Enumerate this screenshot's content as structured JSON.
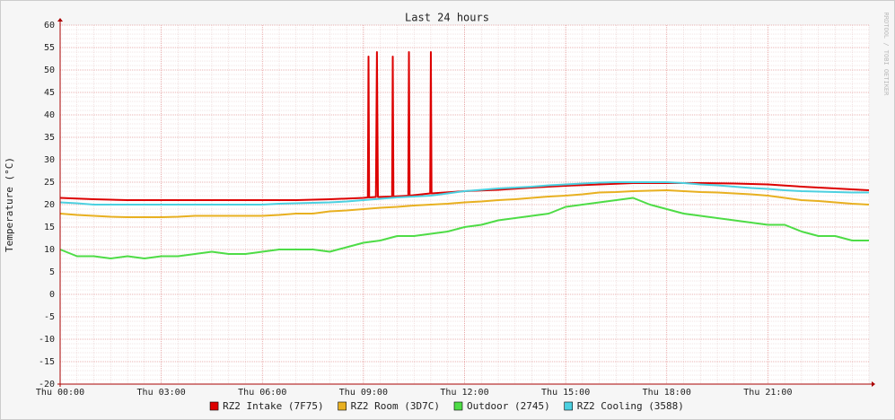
{
  "chart_data": {
    "type": "line",
    "title": "Last 24 hours",
    "y_label": "Temperature (°C)",
    "watermark": "RRDTOOL / TOBI OETIKER",
    "x": [
      0,
      0.5,
      1,
      1.5,
      2,
      2.5,
      3,
      3.5,
      4,
      4.5,
      5,
      5.5,
      6,
      6.5,
      7,
      7.5,
      8,
      8.5,
      9,
      9.5,
      10,
      10.5,
      11,
      11.5,
      12,
      12.5,
      13,
      13.5,
      14,
      14.5,
      15,
      15.5,
      16,
      16.5,
      17,
      17.5,
      18,
      18.5,
      19,
      19.5,
      20,
      20.5,
      21,
      21.5,
      22,
      22.5,
      23,
      23.5,
      24
    ],
    "series": [
      {
        "name": "RZ2 Intake (7F75)",
        "color": "#dd0000",
        "x": [
          0,
          1,
          2,
          3,
          4,
          5,
          6,
          7,
          8,
          9,
          9.13,
          9.15,
          9.17,
          9.37,
          9.4,
          9.43,
          9.85,
          9.87,
          9.89,
          10.33,
          10.35,
          10.37,
          10.98,
          11,
          11.02,
          12,
          13,
          14,
          15,
          16,
          17,
          18,
          19,
          20,
          21,
          22,
          23,
          24
        ],
        "values": [
          21.5,
          21.2,
          21,
          21,
          21,
          21,
          21,
          21,
          21.2,
          21.5,
          21.6,
          53,
          21.6,
          21.7,
          54,
          21.7,
          21.8,
          53,
          21.8,
          22,
          54,
          22,
          22.5,
          54,
          22.5,
          23,
          23.3,
          23.8,
          24.2,
          24.5,
          24.8,
          24.8,
          24.8,
          24.7,
          24.5,
          24,
          23.6,
          23.2
        ]
      },
      {
        "name": "RZ2 Room (3D7C)",
        "color": "#e8b020",
        "values": [
          18,
          17.7,
          17.5,
          17.3,
          17.2,
          17.2,
          17.2,
          17.3,
          17.5,
          17.5,
          17.5,
          17.5,
          17.5,
          17.7,
          18,
          18,
          18.5,
          18.7,
          19,
          19.3,
          19.5,
          19.8,
          20,
          20.2,
          20.5,
          20.7,
          21,
          21.2,
          21.5,
          21.8,
          22,
          22.3,
          22.7,
          22.8,
          23,
          23.1,
          23.2,
          23,
          22.8,
          22.7,
          22.5,
          22.3,
          22,
          21.5,
          21,
          20.8,
          20.5,
          20.2,
          20
        ]
      },
      {
        "name": "Outdoor (2745)",
        "color": "#4edc46",
        "values": [
          10,
          8.5,
          8.5,
          8,
          8.5,
          8,
          8.5,
          8.5,
          9,
          9.5,
          9,
          9,
          9.5,
          10,
          10,
          10,
          9.5,
          10.5,
          11.5,
          12,
          13,
          13,
          13.5,
          14,
          15,
          15.5,
          16.5,
          17,
          17.5,
          18,
          19.5,
          20,
          20.5,
          21,
          21.5,
          20,
          19,
          18,
          17.5,
          17,
          16.5,
          16,
          15.5,
          15.5,
          14,
          13,
          13,
          12,
          12
        ]
      },
      {
        "name": "RZ2 Cooling (3588)",
        "color": "#4cd0e0",
        "values": [
          20.5,
          20.3,
          20,
          20,
          20,
          20,
          20,
          20,
          20,
          20,
          20,
          20,
          20,
          20.2,
          20.3,
          20.4,
          20.5,
          20.7,
          21,
          21.3,
          21.6,
          21.8,
          22,
          22.5,
          23,
          23.3,
          23.6,
          23.8,
          24,
          24.3,
          24.5,
          24.7,
          24.9,
          25,
          25,
          25,
          25,
          24.8,
          24.5,
          24.3,
          24,
          23.7,
          23.5,
          23.2,
          23,
          22.9,
          22.8,
          22.7,
          22.7
        ]
      }
    ],
    "xlim": [
      0,
      24
    ],
    "xticks": [
      {
        "value": 0,
        "label": "Thu 00:00"
      },
      {
        "value": 3,
        "label": "Thu 03:00"
      },
      {
        "value": 6,
        "label": "Thu 06:00"
      },
      {
        "value": 9,
        "label": "Thu 09:00"
      },
      {
        "value": 12,
        "label": "Thu 12:00"
      },
      {
        "value": 15,
        "label": "Thu 15:00"
      },
      {
        "value": 18,
        "label": "Thu 18:00"
      },
      {
        "value": 21,
        "label": "Thu 21:00"
      }
    ],
    "ylim": [
      -20,
      60
    ],
    "yticks": [
      -20,
      -15,
      -10,
      -5,
      0,
      5,
      10,
      15,
      20,
      25,
      30,
      35,
      40,
      45,
      50,
      55,
      60
    ],
    "grid": true
  }
}
